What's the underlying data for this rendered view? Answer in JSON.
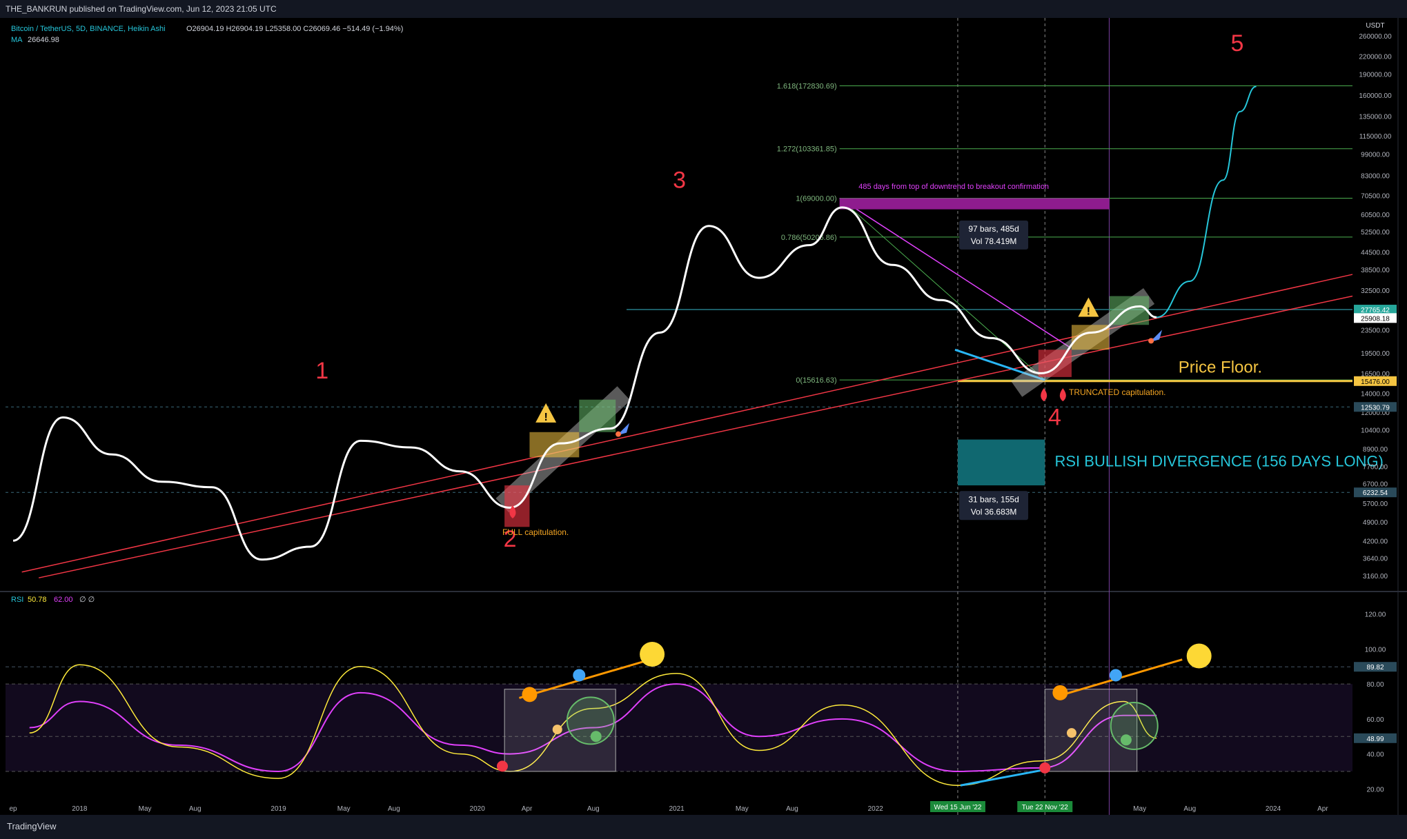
{
  "header": {
    "published": "THE_BANKRUN published on TradingView.com, Jun 12, 2023 21:05 UTC"
  },
  "footer": {
    "brand": "TradingView"
  },
  "legend": {
    "symbol": "Bitcoin / TetherUS, 5D, BINANCE, Heikin Ashi",
    "ohlc": "O26904.19  H26904.19  L25358.00  C26069.46  −514.49 (−1.94%)",
    "ma_label": "MA",
    "ma_value": "26646.98",
    "rsi_label": "RSI",
    "rsi_value": "50.78",
    "rsi_ma": "62.00",
    "rsi_extra": "∅  ∅"
  },
  "colors": {
    "price": "#ffffff",
    "projection": "#26c6da",
    "rsi": "#ffeb3b",
    "rsi_ma": "#e040fb",
    "trend": "#f23645",
    "fib": "#4caf50",
    "accent_cyan": "#00bcd4"
  },
  "price_axis": {
    "currency": "USDT",
    "ticks": [
      "260000.00",
      "220000.00",
      "190000.00",
      "160000.00",
      "135000.00",
      "115000.00",
      "99000.00",
      "83000.00",
      "70500.00",
      "60500.00",
      "52500.00",
      "44500.00",
      "38500.00",
      "32500.00",
      "27500.00",
      "23500.00",
      "19500.00",
      "16500.00",
      "14000.00",
      "12000.00",
      "10400.00",
      "8900.00",
      "7700.00",
      "6700.00",
      "5700.00",
      "4900.00",
      "4200.00",
      "3640.00",
      "3160.00"
    ],
    "tags": [
      {
        "text": "27765.42",
        "color": "#26a69a"
      },
      {
        "text": "25908.18",
        "color": "#ffffff"
      },
      {
        "text": "15476.00",
        "color": "#f5c542"
      },
      {
        "text": "12530.79",
        "color": "#2a4a5a"
      },
      {
        "text": "6232.54",
        "color": "#2a4a5a"
      }
    ]
  },
  "rsi_axis": {
    "ticks": [
      "120.00",
      "100.00",
      "80.00",
      "60.00",
      "40.00",
      "20.00"
    ],
    "tags": [
      {
        "text": "89.82",
        "color": "#2a4a5a"
      },
      {
        "text": "48.99",
        "color": "#2a4a5a"
      }
    ]
  },
  "time_axis": {
    "labels": [
      "ep",
      "2018",
      "May",
      "Aug",
      "2019",
      "May",
      "Aug",
      "2020",
      "Apr",
      "Aug",
      "2021",
      "May",
      "Aug",
      "2022",
      "",
      "",
      "May",
      "Aug",
      "2024",
      "Apr"
    ],
    "highlights": [
      "Wed 15 Jun '22",
      "Tue 22 Nov '22"
    ]
  },
  "fib_levels": [
    {
      "label": "1.618(172830.69)",
      "value": 172830.69
    },
    {
      "label": "1.272(103361.85)",
      "value": 103361.85
    },
    {
      "label": "1(69000.00)",
      "value": 69000.0
    },
    {
      "label": "0.786(50206.86)",
      "value": 50206.86
    },
    {
      "label": "0(15616.63)",
      "value": 15616.63
    }
  ],
  "annotations": {
    "waves": [
      "1",
      "2",
      "3",
      "4",
      "5"
    ],
    "full_cap": "FULL capitulation.",
    "truncated_cap": "TRUNCATED capitulation.",
    "price_floor": "Price Floor.",
    "rsi_div": "RSI BULLISH DIVERGENCE (156 DAYS LONG)",
    "days_note": "485 days from top of downtrend to breakout confirmation",
    "box1_l1": "97 bars, 485d",
    "box1_l2": "Vol 78.419M",
    "box2_l1": "31 bars, 155d",
    "box2_l2": "Vol 36.683M",
    "warn": "!"
  },
  "chart_data": [
    {
      "type": "line",
      "title": "Bitcoin / TetherUS, 5D, BINANCE, Heikin Ashi",
      "log_scale": true,
      "x": [
        "2017-09",
        "2017-12",
        "2018-03",
        "2018-06",
        "2018-09",
        "2018-12",
        "2019-03",
        "2019-06",
        "2019-09",
        "2019-12",
        "2020-03",
        "2020-06",
        "2020-09",
        "2020-12",
        "2021-03",
        "2021-06",
        "2021-09",
        "2021-11",
        "2022-02",
        "2022-05",
        "2022-08",
        "2022-11",
        "2023-02",
        "2023-05",
        "2023-06"
      ],
      "series": [
        {
          "values": [
            4200,
            11500,
            8500,
            6800,
            6500,
            3600,
            4000,
            9500,
            9000,
            7400,
            5500,
            9300,
            10500,
            23000,
            55000,
            36000,
            47000,
            64000,
            40000,
            30000,
            22000,
            16500,
            23000,
            28500,
            26069
          ]
        },
        {
          "x": [
            "2023-06",
            "2023-08",
            "2023-10",
            "2023-11",
            "2023-12"
          ],
          "values": [
            26069,
            35000,
            80000,
            140000,
            172000
          ]
        }
      ]
    },
    {
      "type": "line",
      "title": "RSI",
      "ylim": [
        15,
        125
      ],
      "x": [
        "2017-10",
        "2018-01",
        "2018-07",
        "2019-01",
        "2019-06",
        "2019-12",
        "2020-03",
        "2020-08",
        "2021-01",
        "2021-06",
        "2021-11",
        "2022-06",
        "2022-11",
        "2023-04",
        "2023-06"
      ],
      "series": [
        {
          "values": [
            52,
            91,
            44,
            26,
            90,
            40,
            30,
            66,
            86,
            42,
            68,
            22,
            36,
            70,
            49
          ]
        },
        {
          "values": [
            55,
            70,
            45,
            30,
            75,
            45,
            40,
            55,
            80,
            50,
            60,
            30,
            32,
            62,
            62
          ]
        }
      ]
    }
  ]
}
